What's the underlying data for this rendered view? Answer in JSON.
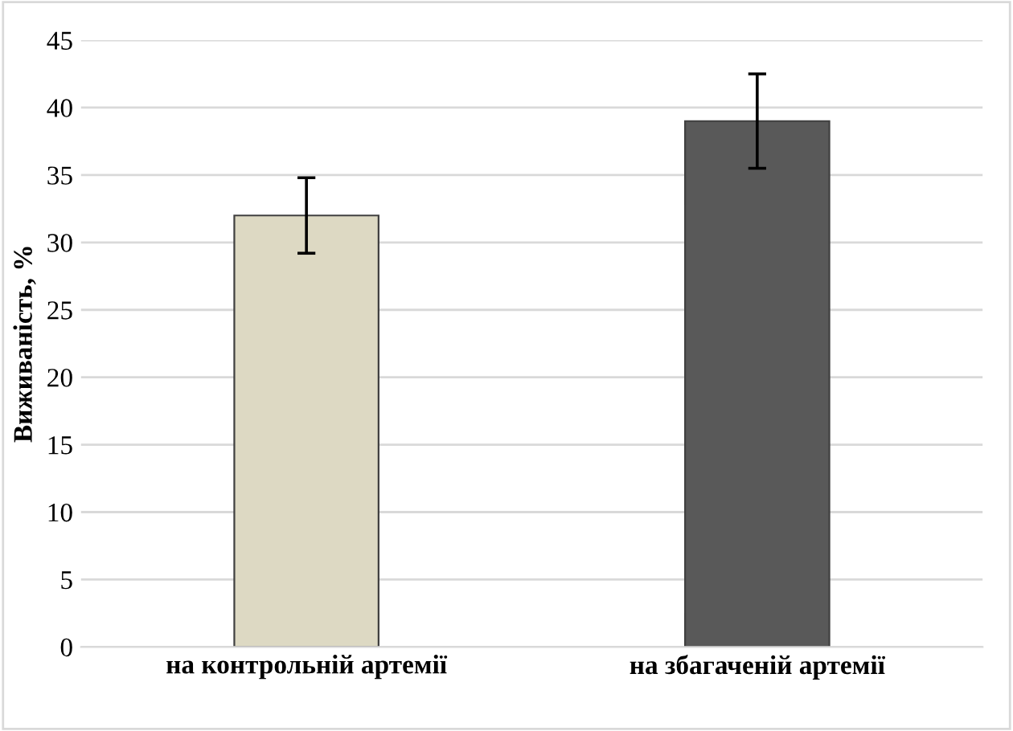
{
  "chart_data": {
    "type": "bar",
    "ylabel": "Виживаність, %",
    "categories": [
      "на контрольній артемії",
      "на збагаченій артемії"
    ],
    "values": [
      32,
      39
    ],
    "colors": [
      "#ddd9c3",
      "#595959"
    ],
    "errors": [
      2.8,
      3.5
    ],
    "ylim": [
      0,
      45
    ],
    "yticks": [
      0,
      5,
      10,
      15,
      20,
      25,
      30,
      35,
      40,
      45
    ],
    "grid": "y"
  }
}
